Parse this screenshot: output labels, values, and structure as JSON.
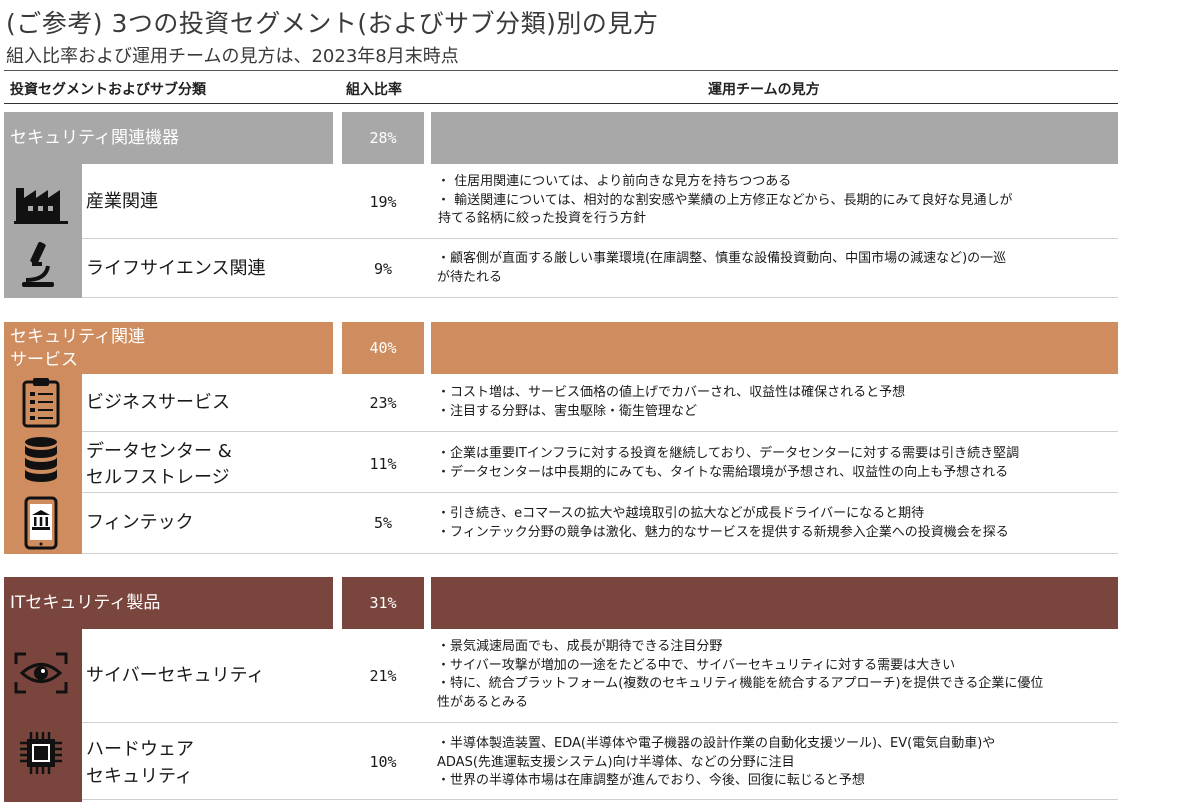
{
  "title": "(ご参考) 3つの投資セグメント(およびサブ分類)別の見方",
  "subtitle": "組入比率および運用チームの見方は、2023年8月末時点",
  "headers": {
    "segment": "投資セグメントおよびサブ分類",
    "ratio": "組入比率",
    "view": "運用チームの見方"
  },
  "colors": {
    "gray": "#a8a8a8",
    "orange": "#cf8c5e",
    "brown": "#7a453c"
  },
  "segments": [
    {
      "label_line1": "セキュリティ関連機器",
      "label_line2": "",
      "ratio": "28%",
      "subs": [
        {
          "icon": "factory-icon",
          "name_line1": "産業関連",
          "name_line2": "",
          "ratio": "19%",
          "view": [
            "・ 住居用関連については、より前向きな見方を持ちつつある",
            "・ 輸送関連については、相対的な割安感や業績の上方修正などから、長期的にみて良好な見通しが",
            "持てる銘柄に絞った投資を行う方針"
          ]
        },
        {
          "icon": "microscope-icon",
          "name_line1": "ライフサイエンス関連",
          "name_line2": "",
          "ratio": "9%",
          "view": [
            "・顧客側が直面する厳しい事業環境(在庫調整、慎重な設備投資動向、中国市場の減速など)の一巡",
            "が待たれる"
          ]
        }
      ]
    },
    {
      "label_line1": "セキュリティ関連",
      "label_line2": "サービス",
      "ratio": "40%",
      "subs": [
        {
          "icon": "clipboard-icon",
          "name_line1": "ビジネスサービス",
          "name_line2": "",
          "ratio": "23%",
          "view": [
            "・コスト増は、サービス価格の値上げでカバーされ、収益性は確保されると予想",
            "・注目する分野は、害虫駆除・衛生管理など"
          ]
        },
        {
          "icon": "database-icon",
          "name_line1": "データセンター &",
          "name_line2": "セルフストレージ",
          "ratio": "11%",
          "view": [
            "・企業は重要ITインフラに対する投資を継続しており、データセンターに対する需要は引き続き堅調",
            "・データセンターは中長期的にみても、タイトな需給環境が予想され、収益性の向上も予想される"
          ]
        },
        {
          "icon": "mobile-bank-icon",
          "name_line1": "フィンテック",
          "name_line2": "",
          "ratio": "5%",
          "view": [
            "・引き続き、eコマースの拡大や越境取引の拡大などが成長ドライバーになると期待",
            "・フィンテック分野の競争は激化、魅力的なサービスを提供する新規参入企業への投資機会を探る"
          ]
        }
      ]
    },
    {
      "label_line1": "ITセキュリティ製品",
      "label_line2": "",
      "ratio": "31%",
      "subs": [
        {
          "icon": "eye-scan-icon",
          "name_line1": "サイバーセキュリティ",
          "name_line2": "",
          "ratio": "21%",
          "view": [
            "・景気減速局面でも、成長が期待できる注目分野",
            "・サイバー攻撃が増加の一途をたどる中で、サイバーセキュリティに対する需要は大きい",
            "・特に、統合プラットフォーム(複数のセキュリティ機能を統合するアプローチ)を提供できる企業に優位",
            "性があるとみる"
          ]
        },
        {
          "icon": "chip-icon",
          "name_line1": "ハードウェア",
          "name_line2": "セキュリティ",
          "ratio": "10%",
          "view": [
            "・半導体製造装置、EDA(半導体や電子機器の設計作業の自動化支援ツール)、EV(電気自動車)や",
            "ADAS(先進運転支援システム)向け半導体、などの分野に注目",
            "・世界の半導体市場は在庫調整が進んでおり、今後、回復に転じると予想"
          ]
        }
      ]
    }
  ]
}
